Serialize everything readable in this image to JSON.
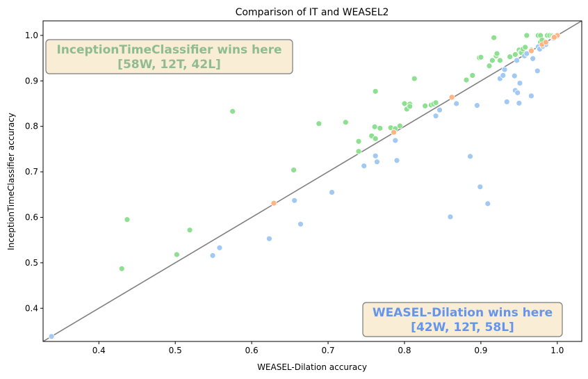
{
  "chart_data": {
    "type": "scatter",
    "title": "Comparison of IT and WEASEL2",
    "xlabel": "WEASEL-Dilation accuracy",
    "ylabel": "InceptionTimeClassifier accuracy",
    "xlim": [
      0.327,
      1.032
    ],
    "ylim": [
      0.327,
      1.032
    ],
    "xticks": [
      "0.4",
      "0.5",
      "0.6",
      "0.7",
      "0.8",
      "0.9",
      "1.0"
    ],
    "yticks": [
      "0.4",
      "0.5",
      "0.6",
      "0.7",
      "0.8",
      "0.9",
      "1.0"
    ],
    "diagonal_color": "#808080",
    "annotations": [
      {
        "line1": "InceptionTimeClassifier wins here",
        "line2": "[58W, 12T, 42L]",
        "color": "#8fbc8f",
        "box_fill": "#f5deb3",
        "anchor": "top-left"
      },
      {
        "line1": "WEASEL-Dilation wins here",
        "line2": "[42W, 12T, 58L]",
        "color": "#6495ed",
        "box_fill": "#f5deb3",
        "anchor": "bottom-right"
      }
    ],
    "series": [
      {
        "color": "#8de08f",
        "points": [
          [
            0.43,
            0.487
          ],
          [
            0.437,
            0.595
          ],
          [
            0.502,
            0.518
          ],
          [
            0.519,
            0.572
          ],
          [
            0.575,
            0.833
          ],
          [
            0.655,
            0.704
          ],
          [
            0.688,
            0.806
          ],
          [
            0.723,
            0.809
          ],
          [
            0.74,
            0.767
          ],
          [
            0.74,
            0.745
          ],
          [
            0.757,
            0.779
          ],
          [
            0.761,
            0.799
          ],
          [
            0.762,
            0.773
          ],
          [
            0.762,
            0.877
          ],
          [
            0.768,
            0.796
          ],
          [
            0.782,
            0.797
          ],
          [
            0.788,
            0.795
          ],
          [
            0.794,
            0.801
          ],
          [
            0.8,
            0.85
          ],
          [
            0.803,
            0.838
          ],
          [
            0.807,
            0.849
          ],
          [
            0.807,
            0.844
          ],
          [
            0.813,
            0.905
          ],
          [
            0.827,
            0.845
          ],
          [
            0.835,
            0.847
          ],
          [
            0.838,
            0.849
          ],
          [
            0.841,
            0.852
          ],
          [
            0.881,
            0.902
          ],
          [
            0.889,
            0.912
          ],
          [
            0.898,
            0.951
          ],
          [
            0.9,
            0.952
          ],
          [
            0.911,
            0.933
          ],
          [
            0.915,
            0.945
          ],
          [
            0.917,
            0.995
          ],
          [
            0.92,
            0.955
          ],
          [
            0.921,
            0.96
          ],
          [
            0.925,
            0.945
          ],
          [
            0.938,
            0.953
          ],
          [
            0.945,
            0.958
          ],
          [
            0.95,
            0.968
          ],
          [
            0.952,
            0.963
          ],
          [
            0.953,
            0.962
          ],
          [
            0.955,
            0.97
          ],
          [
            0.958,
            0.974
          ],
          [
            0.96,
            1.0
          ],
          [
            0.966,
            0.968
          ],
          [
            0.975,
            1.0
          ],
          [
            0.978,
            1.0
          ],
          [
            0.978,
            0.985
          ],
          [
            0.98,
            0.99
          ],
          [
            0.987,
            1.0
          ],
          [
            0.99,
            1.0
          ],
          [
            0.993,
            1.0
          ],
          [
            0.995,
            1.0
          ],
          [
            0.997,
            1.0
          ],
          [
            0.998,
            1.0
          ],
          [
            0.999,
            1.0
          ],
          [
            1.0,
            1.0
          ]
        ]
      },
      {
        "color": "#a1c9f4",
        "points": [
          [
            0.338,
            0.338
          ],
          [
            0.549,
            0.516
          ],
          [
            0.558,
            0.533
          ],
          [
            0.623,
            0.553
          ],
          [
            0.656,
            0.637
          ],
          [
            0.664,
            0.585
          ],
          [
            0.705,
            0.655
          ],
          [
            0.747,
            0.713
          ],
          [
            0.762,
            0.735
          ],
          [
            0.764,
            0.722
          ],
          [
            0.788,
            0.769
          ],
          [
            0.79,
            0.725
          ],
          [
            0.841,
            0.823
          ],
          [
            0.846,
            0.836
          ],
          [
            0.868,
            0.85
          ],
          [
            0.86,
            0.601
          ],
          [
            0.886,
            0.734
          ],
          [
            0.895,
            0.846
          ],
          [
            0.899,
            0.667
          ],
          [
            0.909,
            0.63
          ],
          [
            0.925,
            0.905
          ],
          [
            0.929,
            0.912
          ],
          [
            0.931,
            0.925
          ],
          [
            0.934,
            0.854
          ],
          [
            0.944,
            0.911
          ],
          [
            0.945,
            0.879
          ],
          [
            0.947,
            0.945
          ],
          [
            0.948,
            0.874
          ],
          [
            0.95,
            0.851
          ],
          [
            0.951,
            0.895
          ],
          [
            0.957,
            0.955
          ],
          [
            0.96,
            0.96
          ],
          [
            0.966,
            0.867
          ],
          [
            0.968,
            0.949
          ],
          [
            0.974,
            0.922
          ],
          [
            0.975,
            0.975
          ],
          [
            0.977,
            0.97
          ],
          [
            0.981,
            0.976
          ],
          [
            0.985,
            0.98
          ],
          [
            0.995,
            0.993
          ],
          [
            0.997,
            0.996
          ],
          [
            0.999,
            0.998
          ]
        ]
      },
      {
        "color": "#ffb482",
        "points": [
          [
            0.629,
            0.631
          ],
          [
            0.786,
            0.787
          ],
          [
            0.862,
            0.864
          ],
          [
            0.966,
            0.966
          ],
          [
            0.98,
            0.98
          ],
          [
            0.985,
            0.985
          ],
          [
            0.995,
            0.995
          ],
          [
            0.997,
            0.997
          ],
          [
            0.998,
            0.999
          ],
          [
            0.999,
            0.998
          ],
          [
            1.0,
            1.0
          ],
          [
            0.996,
            0.996
          ]
        ]
      }
    ]
  }
}
